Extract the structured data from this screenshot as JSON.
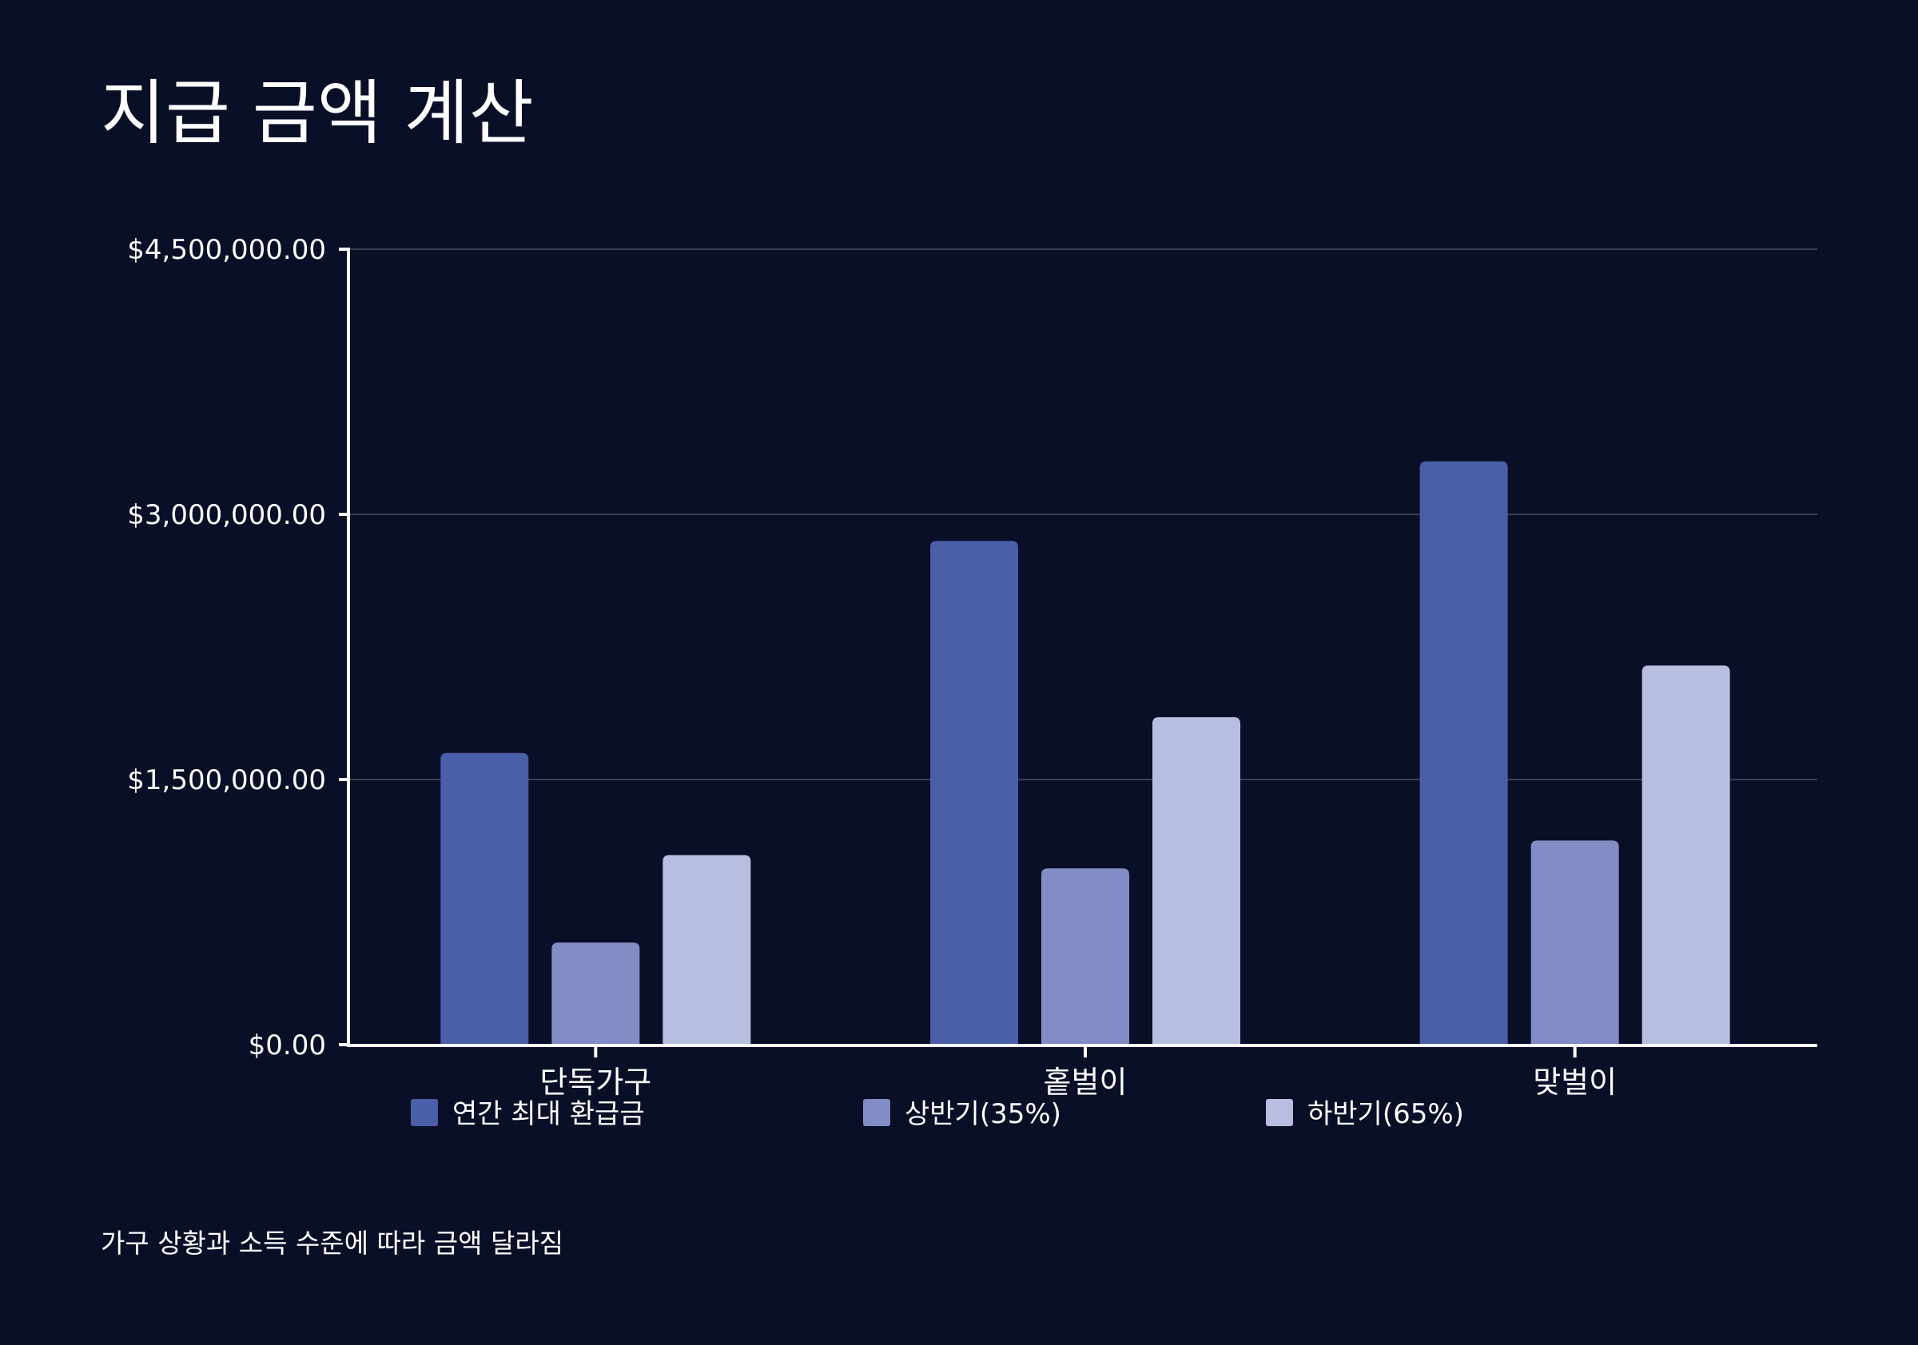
{
  "title": "지급 금액 계산",
  "footnote": "가구 상황과 소득 수준에 따라 금액 달라짐",
  "chart_data": {
    "type": "bar",
    "title": "지급 금액 계산",
    "categories": [
      "단독가구",
      "홑벌이",
      "맞벌이"
    ],
    "series": [
      {
        "name": "연간 최대 환급금",
        "color": "#4b5ea8",
        "values": [
          1650000,
          2850000,
          3300000
        ]
      },
      {
        "name": "상반기(35%)",
        "color": "#828dc5",
        "values": [
          577500,
          997500,
          1155000
        ]
      },
      {
        "name": "하반기(65%)",
        "color": "#b8bedf",
        "values": [
          1072500,
          1852500,
          2145000
        ]
      }
    ],
    "ylim": [
      0,
      4500000
    ],
    "y_ticks": [
      0,
      1500000,
      3000000,
      4500000
    ],
    "y_tick_labels": [
      "$0.00",
      "$1,500,000.00",
      "$3,000,000.00",
      "$4,500,000.00"
    ],
    "grid": true,
    "legend_position": "bottom",
    "colors": {
      "background": "#090f27",
      "axis": "#ffffff",
      "grid": "#3a3f55",
      "text": "#ffffff"
    }
  }
}
